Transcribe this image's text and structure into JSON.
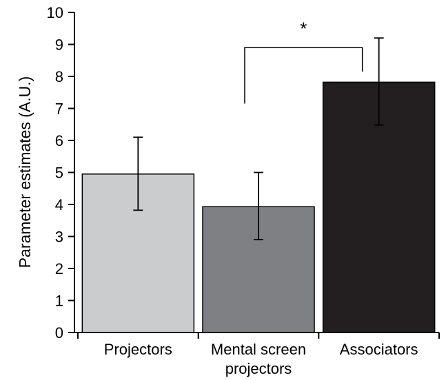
{
  "chart_data": {
    "type": "bar",
    "title": "",
    "xlabel": "",
    "ylabel": "Parameter estimates (A.U.)",
    "ylim": [
      0,
      10
    ],
    "yticks": [
      0,
      1,
      2,
      3,
      4,
      5,
      6,
      7,
      8,
      9,
      10
    ],
    "grid": false,
    "legend": "none",
    "categories": [
      [
        "Projectors"
      ],
      [
        "Mental screen",
        "projectors"
      ],
      [
        "Associators"
      ]
    ],
    "values": [
      4.95,
      3.93,
      7.82
    ],
    "error_low": [
      3.82,
      2.9,
      6.48
    ],
    "error_high": [
      6.1,
      5.0,
      9.2
    ],
    "colors": [
      "#cbccce",
      "#7e8084",
      "#231f20"
    ],
    "significance": {
      "between": [
        1,
        2
      ],
      "label": "*"
    }
  }
}
